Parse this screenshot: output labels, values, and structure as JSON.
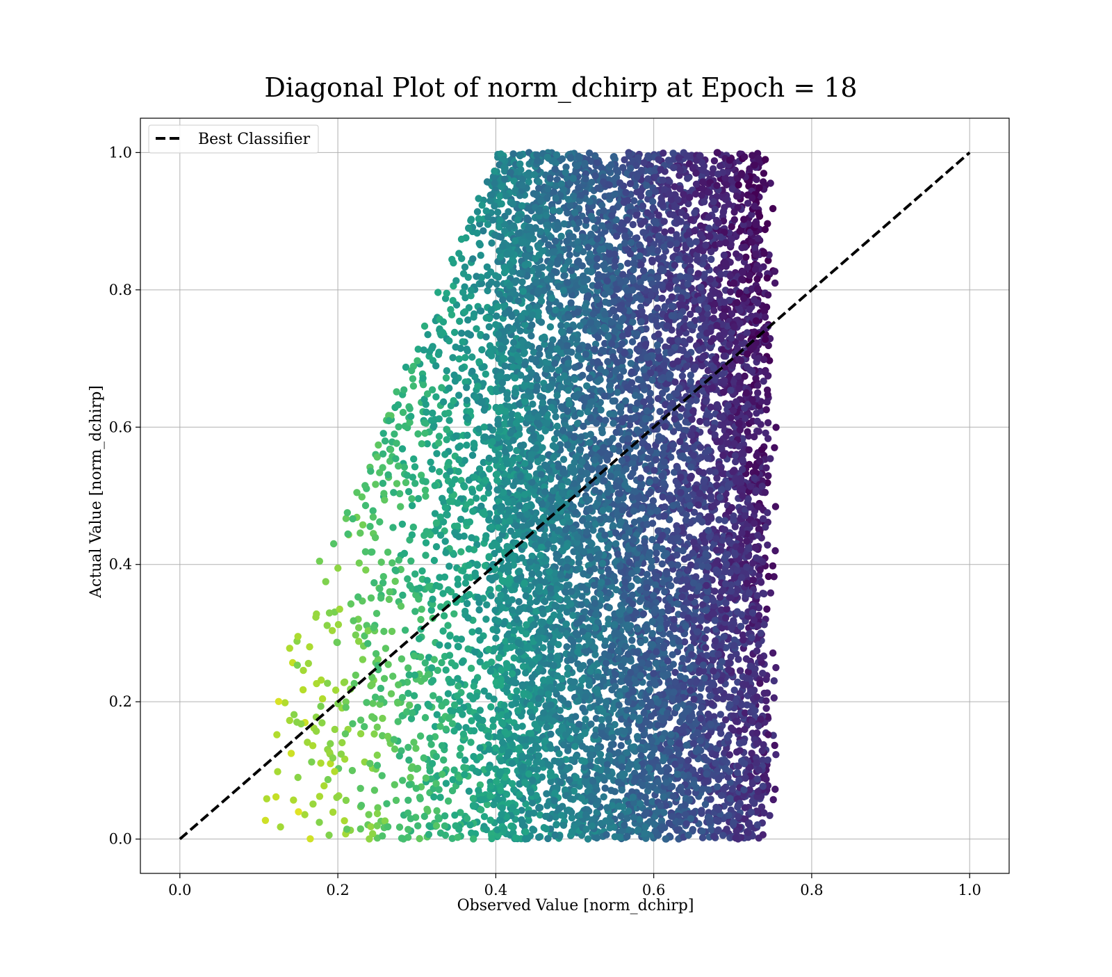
{
  "chart_data": {
    "type": "scatter",
    "title": "Diagonal Plot of norm_dchirp at Epoch = 18",
    "xlabel": "Observed Value [norm_dchirp]",
    "ylabel": "Actual Value [norm_dchirp]",
    "xlim": [
      -0.05,
      1.05
    ],
    "ylim": [
      -0.05,
      1.05
    ],
    "xticks": [
      "0.0",
      "0.2",
      "0.4",
      "0.6",
      "0.8",
      "1.0"
    ],
    "yticks": [
      "0.0",
      "0.2",
      "0.4",
      "0.6",
      "0.8",
      "1.0"
    ],
    "grid": true,
    "legend": {
      "placement": "top-left",
      "entries": [
        "Best Classifier"
      ]
    },
    "reference_line": {
      "name": "Best Classifier",
      "x": [
        0.0,
        1.0
      ],
      "y": [
        0.0,
        1.0
      ],
      "style": "dashed",
      "color": "#000000"
    },
    "scatter": {
      "colormap": "viridis",
      "x_range_observed": [
        0.09,
        0.755
      ],
      "y_range_actual": [
        0.0,
        1.0
      ],
      "color_trend": "yellow-green at low observed values, dark purple at high observed values",
      "density": "dense band for observed 0.4-0.75 across all actual values; sparse wedge for observed < 0.4 limited to actual below roughly 2x observed",
      "point_count_approx": 9000
    }
  }
}
